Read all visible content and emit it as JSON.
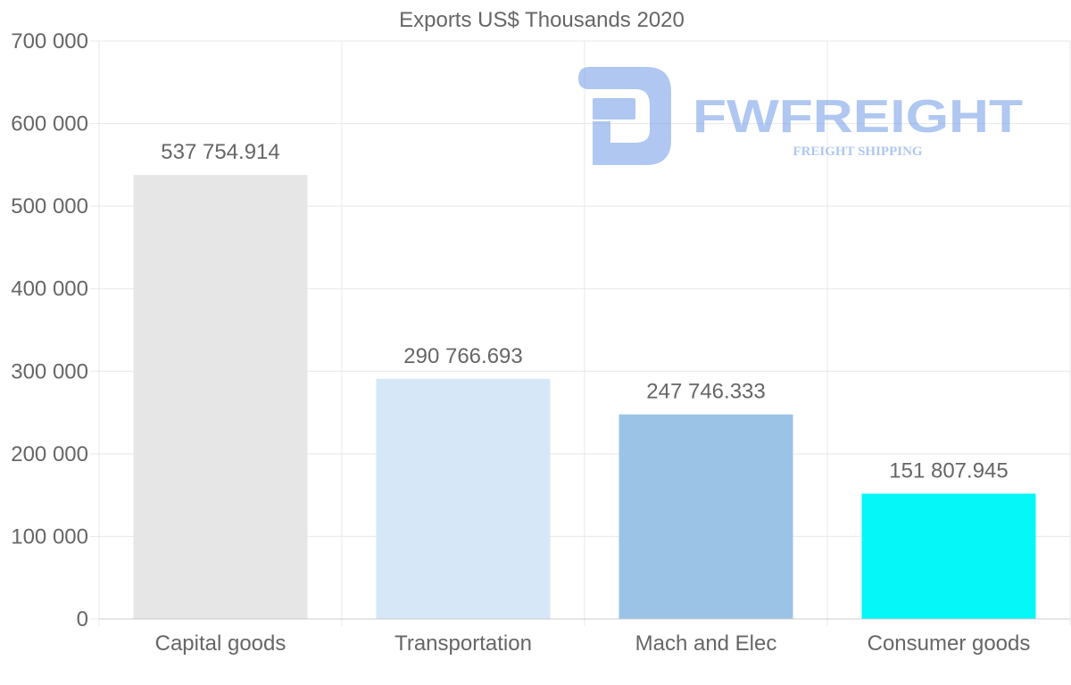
{
  "chart_data": {
    "type": "bar",
    "title": "Exports US$ Thousands 2020",
    "xlabel": "",
    "ylabel": "",
    "ylim": [
      0,
      700000
    ],
    "ytick_values": [
      0,
      100000,
      200000,
      300000,
      400000,
      500000,
      600000,
      700000
    ],
    "ytick_labels": [
      "0",
      "100 000",
      "200 000",
      "300 000",
      "400 000",
      "500 000",
      "600 000",
      "700 000"
    ],
    "categories": [
      "Capital goods",
      "Transportation",
      "Mach and Elec",
      "Consumer goods"
    ],
    "values": [
      537754.914,
      290766.693,
      247746.333,
      151807.945
    ],
    "value_labels": [
      "537 754.914",
      "290 766.693",
      "247 746.333",
      "151 807.945"
    ],
    "bar_colors": [
      "#e6e6e6",
      "#d6e7f8",
      "#9bc3e6",
      "#05f7f7"
    ],
    "grid": true,
    "legend": "none"
  },
  "watermark": {
    "brand": "FWFREIGHT",
    "tagline": "FREIGHT SHIPPING",
    "color": "#6f9ae6"
  },
  "colors": {
    "text": "#666666",
    "grid": "#e8e8e8",
    "axis": "#cccccc"
  }
}
